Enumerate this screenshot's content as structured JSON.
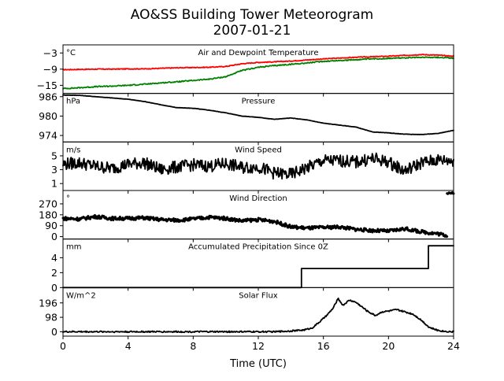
{
  "figure": {
    "title": "AO&SS Building Tower Meteorogram",
    "subtitle": "2007-01-21",
    "xlabel": "Time (UTC)"
  },
  "chart_data": [
    {
      "type": "line",
      "title": "Air and Dewpoint Temperature",
      "unit": "°C",
      "xlim": [
        0,
        24
      ],
      "ylim": [
        -18,
        0
      ],
      "yticks": [
        -3,
        -9,
        -15
      ],
      "yticklabels": [
        "−3",
        "−9",
        "−15"
      ],
      "xticks": [
        0,
        4,
        8,
        12,
        16,
        20,
        24
      ],
      "series": [
        {
          "color": "#ff0000",
          "noise": 0.15,
          "x": [
            0,
            1,
            2,
            3,
            4,
            5,
            6,
            7,
            8,
            9,
            10,
            11,
            12,
            13,
            14,
            15,
            16,
            17,
            18,
            19,
            20,
            21,
            22,
            23,
            24
          ],
          "y": [
            -9.2,
            -9.1,
            -9.0,
            -9.0,
            -8.9,
            -8.9,
            -8.7,
            -8.5,
            -8.4,
            -8.3,
            -8.0,
            -7.0,
            -6.5,
            -6.3,
            -6.0,
            -5.6,
            -5.2,
            -4.9,
            -4.6,
            -4.4,
            -4.2,
            -3.9,
            -3.6,
            -3.8,
            -4.2
          ]
        },
        {
          "color": "#008000",
          "noise": 0.2,
          "x": [
            0,
            1,
            2,
            3,
            4,
            5,
            6,
            7,
            8,
            9,
            10,
            11,
            12,
            13,
            14,
            15,
            16,
            17,
            18,
            19,
            20,
            21,
            22,
            23,
            24
          ],
          "y": [
            -16.2,
            -15.9,
            -15.5,
            -15.3,
            -15.0,
            -14.6,
            -14.1,
            -13.7,
            -13.2,
            -12.7,
            -11.8,
            -9.5,
            -8.3,
            -7.7,
            -7.2,
            -6.7,
            -6.1,
            -5.8,
            -5.5,
            -5.2,
            -5.0,
            -4.8,
            -4.6,
            -4.6,
            -4.9
          ]
        }
      ]
    },
    {
      "type": "line",
      "title": "Pressure",
      "unit": "hPa",
      "xlim": [
        0,
        24
      ],
      "ylim": [
        972,
        987
      ],
      "yticks": [
        986,
        980,
        974
      ],
      "yticklabels": [
        "986",
        "980",
        "974"
      ],
      "xticks": [
        0,
        4,
        8,
        12,
        16,
        20,
        24
      ],
      "series": [
        {
          "color": "#000000",
          "noise": 0.05,
          "x": [
            0,
            1,
            2,
            3,
            4,
            5,
            6,
            7,
            8,
            9,
            10,
            11,
            12,
            13,
            13.5,
            14,
            15,
            16,
            17,
            18,
            19,
            20,
            21,
            22,
            23,
            24
          ],
          "y": [
            986.5,
            986.4,
            986.0,
            985.6,
            985.2,
            984.5,
            983.5,
            982.6,
            982.4,
            981.8,
            981.0,
            980.0,
            979.6,
            979.0,
            979.2,
            979.4,
            978.8,
            977.8,
            977.2,
            976.6,
            975.1,
            974.8,
            974.4,
            974.3,
            974.6,
            975.6
          ]
        }
      ]
    },
    {
      "type": "line",
      "title": "Wind Speed",
      "unit": "m/s",
      "xlim": [
        0,
        24
      ],
      "ylim": [
        0,
        7
      ],
      "yticks": [
        5,
        3,
        1
      ],
      "yticklabels": [
        "5",
        "3",
        "1"
      ],
      "xticks": [
        0,
        4,
        8,
        12,
        16,
        20,
        24
      ],
      "series": [
        {
          "color": "#000000",
          "noise": 0.9,
          "x": [
            0,
            1,
            2,
            3,
            4,
            5,
            6,
            7,
            8,
            9,
            10,
            11,
            12,
            13,
            14,
            15,
            16,
            17,
            18,
            19,
            20,
            21,
            22,
            23,
            24
          ],
          "y": [
            3.8,
            4.0,
            3.5,
            3.2,
            3.8,
            4.0,
            3.0,
            3.4,
            3.7,
            3.5,
            3.9,
            3.3,
            3.4,
            2.5,
            2.3,
            3.3,
            4.3,
            4.3,
            4.1,
            4.6,
            4.1,
            2.8,
            4.0,
            4.4,
            4.3
          ]
        }
      ]
    },
    {
      "type": "scatter",
      "title": "Wind Direction",
      "unit": "°",
      "xlim": [
        0,
        24
      ],
      "ylim": [
        -20,
        380
      ],
      "yticks": [
        270,
        180,
        90,
        0
      ],
      "yticklabels": [
        "270",
        "180",
        "90",
        "0"
      ],
      "xticks": [
        0,
        4,
        8,
        12,
        16,
        20,
        24
      ],
      "series": [
        {
          "color": "#000000",
          "noise": 14,
          "x": [
            0,
            1,
            2,
            3,
            4,
            5,
            6,
            7,
            8,
            9,
            10,
            11,
            12,
            13,
            14,
            15,
            16,
            17,
            18,
            19,
            20,
            21,
            22,
            23,
            23.6
          ],
          "y": [
            150,
            145,
            165,
            150,
            150,
            155,
            140,
            135,
            145,
            160,
            150,
            130,
            140,
            125,
            80,
            70,
            75,
            80,
            60,
            50,
            45,
            65,
            40,
            25,
            10
          ]
        },
        {
          "color": "#000000",
          "noise": 8,
          "x": [
            23.6,
            23.8,
            24
          ],
          "y": [
            350,
            360,
            355
          ]
        }
      ]
    },
    {
      "type": "line",
      "title": "Accumulated Precipitation Since 0Z",
      "unit": "mm",
      "xlim": [
        0,
        24
      ],
      "ylim": [
        0,
        6.5
      ],
      "yticks": [
        4,
        2,
        0
      ],
      "yticklabels": [
        "4",
        "2",
        "0"
      ],
      "xticks": [
        0,
        4,
        8,
        12,
        16,
        20,
        24
      ],
      "series": [
        {
          "color": "#000000",
          "noise": 0,
          "x": [
            0,
            14.65,
            14.65,
            22.45,
            22.45,
            24
          ],
          "y": [
            0,
            0,
            2.55,
            2.55,
            5.6,
            5.6
          ]
        }
      ]
    },
    {
      "type": "line",
      "title": "Solar Flux",
      "unit": "W/m^2",
      "xlim": [
        0,
        24
      ],
      "ylim": [
        -30,
        300
      ],
      "yticks": [
        196,
        98,
        0
      ],
      "yticklabels": [
        "196",
        "98",
        "0"
      ],
      "xticks": [
        0,
        4,
        8,
        12,
        16,
        20,
        24
      ],
      "series": [
        {
          "color": "#000000",
          "noise": 5,
          "x": [
            0,
            13,
            14,
            14.8,
            15.3,
            15.8,
            16.2,
            16.6,
            16.9,
            17.2,
            17.6,
            18.0,
            18.3,
            18.7,
            19.2,
            19.6,
            20.0,
            20.5,
            21.0,
            21.5,
            22.0,
            22.5,
            23.0,
            23.5,
            24
          ],
          "y": [
            0,
            0,
            5,
            12,
            25,
            70,
            110,
            160,
            225,
            180,
            215,
            200,
            175,
            140,
            110,
            135,
            140,
            150,
            135,
            120,
            80,
            30,
            10,
            2,
            0
          ]
        }
      ]
    }
  ]
}
